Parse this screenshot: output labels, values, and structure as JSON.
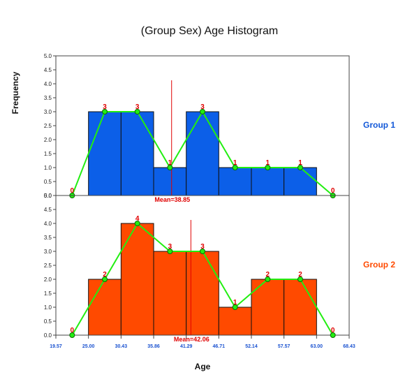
{
  "chart_data": {
    "type": "bar",
    "subtype": "histogram-with-frequency-polygon",
    "title": "(Group Sex) Age Histogram",
    "xlabel": "Age",
    "ylabel": "Frequency",
    "x_ticks": [
      "19.57",
      "25.00",
      "30.43",
      "35.86",
      "41.29",
      "46.71",
      "52.14",
      "57.57",
      "63.00",
      "68.43"
    ],
    "bin_edges": [
      25.0,
      30.43,
      35.86,
      41.29,
      46.71,
      52.14,
      57.57,
      63.0
    ],
    "x_range": [
      19.57,
      68.43
    ],
    "y_ticks": [
      "0.0",
      "0.5",
      "1.0",
      "1.5",
      "2.0",
      "2.5",
      "3.0",
      "3.5",
      "4.0",
      "4.5",
      "5.0"
    ],
    "ylim": [
      0,
      5
    ],
    "grid": false,
    "series": [
      {
        "name": "Group 1",
        "color": "#0c5fe8",
        "label_color": "#1258d8",
        "bin_counts": [
          3,
          3,
          1,
          3,
          1,
          1,
          1
        ],
        "polygon_values": [
          0,
          3,
          3,
          1,
          3,
          1,
          1,
          1,
          0
        ],
        "mean": 38.85,
        "mean_label": "Mean=38.85"
      },
      {
        "name": "Group 2",
        "color": "#ff4a00",
        "label_color": "#ff4a00",
        "bin_counts": [
          2,
          4,
          3,
          3,
          1,
          2,
          2
        ],
        "polygon_values": [
          0,
          2,
          4,
          3,
          3,
          1,
          2,
          2,
          0
        ],
        "mean": 42.06,
        "mean_label": "Mean=42.06"
      }
    ],
    "polygon_color": "#22ee11",
    "annotation_color": "#e00000"
  }
}
